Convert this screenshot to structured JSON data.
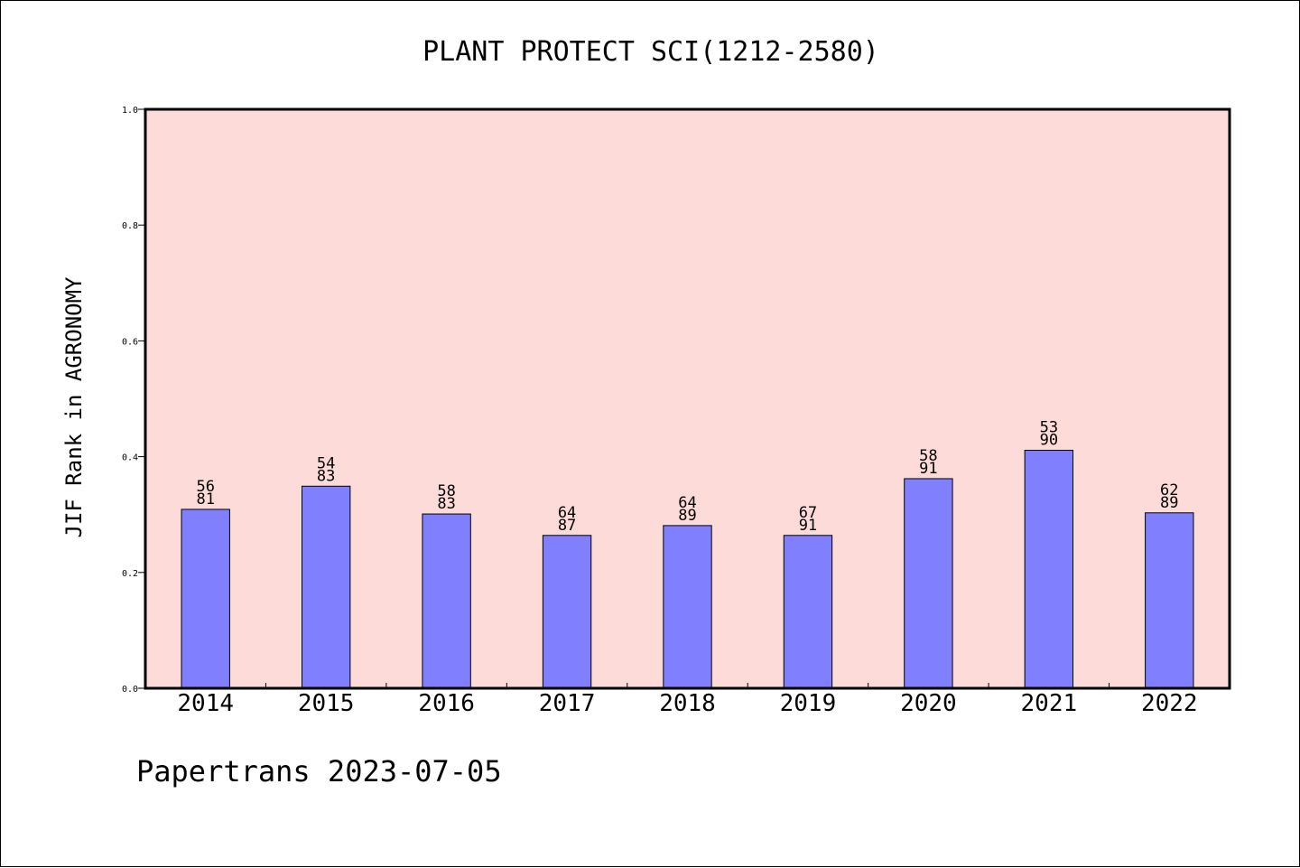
{
  "chart_data": {
    "type": "bar",
    "title": "PLANT PROTECT SCI(1212-2580)",
    "xlabel": "",
    "ylabel": "JIF Rank in AGRONOMY",
    "ylim": [
      0,
      1.0
    ],
    "yticks": [
      "0.0",
      "0.2",
      "0.4",
      "0.6",
      "0.8",
      "1.0"
    ],
    "categories": [
      "2014",
      "2015",
      "2016",
      "2017",
      "2018",
      "2019",
      "2020",
      "2021",
      "2022"
    ],
    "values": [
      0.309,
      0.349,
      0.301,
      0.264,
      0.281,
      0.264,
      0.362,
      0.411,
      0.303
    ],
    "labels": [
      [
        "56",
        "81"
      ],
      [
        "54",
        "83"
      ],
      [
        "58",
        "83"
      ],
      [
        "64",
        "87"
      ],
      [
        "64",
        "89"
      ],
      [
        "67",
        "91"
      ],
      [
        "58",
        "91"
      ],
      [
        "53",
        "90"
      ],
      [
        "62",
        "89"
      ]
    ],
    "colors": {
      "plot_bg": "#fddbd8",
      "bar": "#8080ff",
      "bar_edge": "#000000"
    },
    "grid": false,
    "legend": "none"
  },
  "footer": {
    "text": "Papertrans 2023-07-05"
  }
}
